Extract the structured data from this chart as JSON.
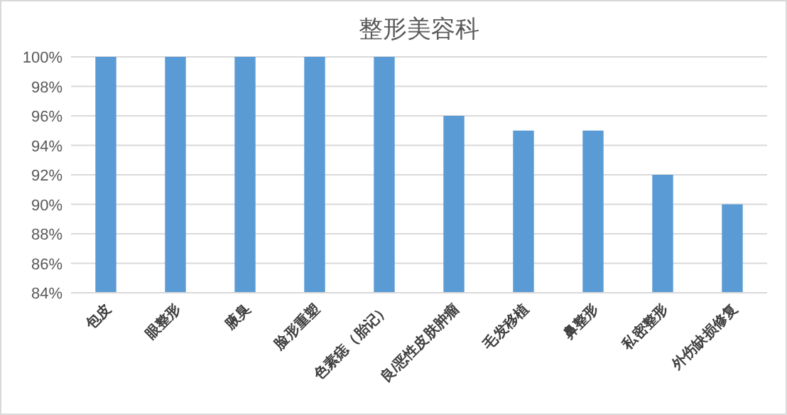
{
  "chart_data": {
    "type": "bar",
    "title": "整形美容科",
    "categories": [
      "包皮",
      "眼整形",
      "腋臭",
      "脸形重塑",
      "色素痣（胎记）",
      "良/恶性皮肤肿瘤",
      "毛发移植",
      "鼻整形",
      "私密整形",
      "外伤缺损修复"
    ],
    "values": [
      100,
      100,
      100,
      100,
      100,
      96,
      95,
      95,
      92,
      90
    ],
    "color": "#5b9bd5",
    "ylim": [
      84,
      100
    ],
    "yticks": [
      {
        "value": 84,
        "label": "84%"
      },
      {
        "value": 86,
        "label": "86%"
      },
      {
        "value": 88,
        "label": "88%"
      },
      {
        "value": 90,
        "label": "90%"
      },
      {
        "value": 92,
        "label": "92%"
      },
      {
        "value": 94,
        "label": "94%"
      },
      {
        "value": 96,
        "label": "96%"
      },
      {
        "value": 98,
        "label": "98%"
      },
      {
        "value": 100,
        "label": "100%"
      }
    ],
    "grid": "y"
  }
}
